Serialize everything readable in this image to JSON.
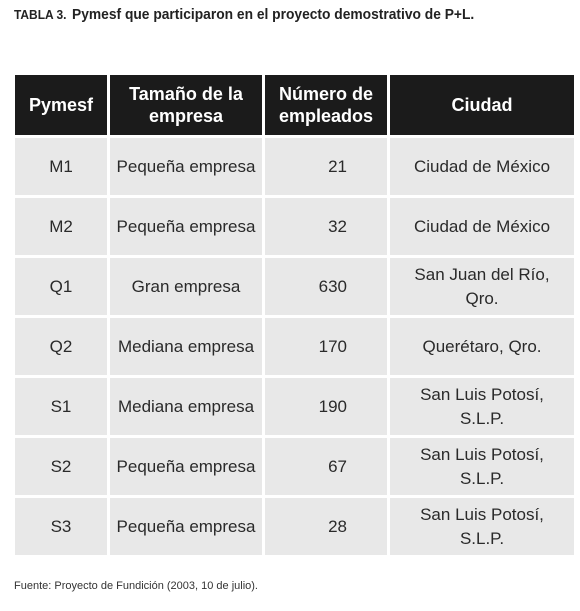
{
  "caption": {
    "label": "TABLA 3.",
    "text": "Pymesf que participaron en el proyecto demostrativo de P+L."
  },
  "table": {
    "headers": [
      "Pymesf",
      "Tamaño de la empresa",
      "Número de empleados",
      "Ciudad"
    ],
    "rows": [
      [
        "M1",
        "Pequeña empresa",
        "21",
        "Ciudad de México"
      ],
      [
        "M2",
        "Pequeña empresa",
        "32",
        "Ciudad de México"
      ],
      [
        "Q1",
        "Gran empresa",
        "630",
        "San Juan del Río, Qro."
      ],
      [
        "Q2",
        "Mediana empresa",
        "170",
        "Querétaro, Qro."
      ],
      [
        "S1",
        "Mediana empresa",
        "190",
        "San Luis Potosí, S.L.P."
      ],
      [
        "S2",
        "Pequeña empresa",
        "67",
        "San Luis Potosí, S.L.P."
      ],
      [
        "S3",
        "Pequeña empresa",
        "28",
        "San Luis Potosí, S.L.P."
      ]
    ]
  },
  "source": "Fuente: Proyecto de Fundición (2003, 10 de julio)."
}
